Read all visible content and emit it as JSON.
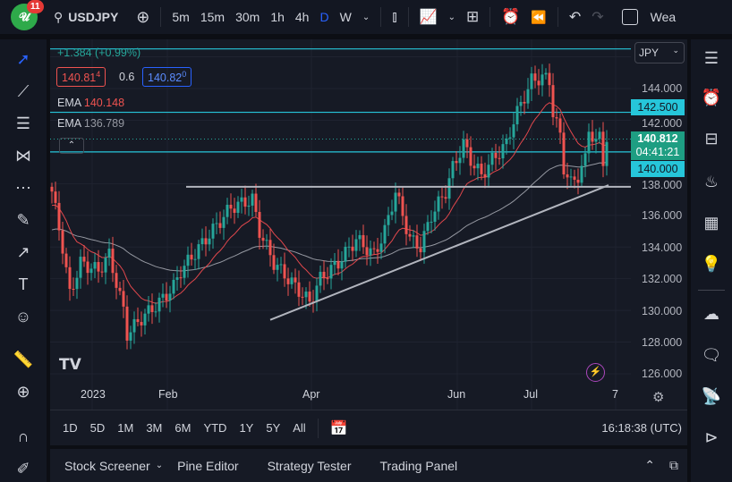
{
  "header": {
    "logo_badge": "11",
    "symbol": "USDJPY",
    "intervals": [
      "5m",
      "15m",
      "30m",
      "1h",
      "4h",
      "D",
      "W"
    ],
    "active_interval": "D",
    "weather_text": "Wea"
  },
  "legend": {
    "change": "+1.384 (+0.99%)",
    "sell_price": "140.81",
    "sell_sup": "4",
    "spread": "0.6",
    "buy_price": "140.82",
    "buy_sup": "0",
    "ema1_label": "EMA",
    "ema1_value": "140.148",
    "ema2_label": "EMA",
    "ema2_value": "136.789"
  },
  "price_axis": {
    "currency": "JPY",
    "ticks": [
      "144.000",
      "142.000",
      "138.000",
      "136.000",
      "134.000",
      "132.000",
      "130.000",
      "128.000",
      "126.000"
    ],
    "tags": {
      "alert_high": "142.500",
      "last_price": "140.812",
      "countdown": "04:41:21",
      "alert_low": "140.000"
    }
  },
  "time_axis": {
    "labels": [
      "2023",
      "Feb",
      "Apr",
      "Jun",
      "Jul",
      "7"
    ]
  },
  "range_bar": {
    "ranges": [
      "1D",
      "5D",
      "1M",
      "3M",
      "6M",
      "YTD",
      "1Y",
      "5Y",
      "All"
    ],
    "clock": "16:18:38 (UTC)"
  },
  "bottom_panel": {
    "tabs": [
      "Stock Screener",
      "Pine Editor",
      "Strategy Tester",
      "Trading Panel"
    ]
  },
  "colors": {
    "up": "#26a69a",
    "down": "#ef5350",
    "ema_fast": "#e0474c",
    "ema_slow": "#9598a1",
    "hline": "#26c6da",
    "accent": "#2962ff"
  },
  "chart_data": {
    "type": "candlestick",
    "symbol": "USDJPY",
    "timeframe": "D",
    "ylim": [
      125,
      147.5
    ],
    "close_path": [
      [
        0,
        137.5
      ],
      [
        3,
        134
      ],
      [
        5,
        131
      ],
      [
        8,
        133
      ],
      [
        13,
        132.5
      ],
      [
        16,
        133.5
      ],
      [
        20,
        130
      ],
      [
        21,
        128.5
      ],
      [
        25,
        129.5
      ],
      [
        30,
        130.5
      ],
      [
        34,
        131.5
      ],
      [
        36,
        132.5
      ],
      [
        43,
        134.5
      ],
      [
        50,
        136.5
      ],
      [
        56,
        137
      ],
      [
        58,
        135
      ],
      [
        62,
        133
      ],
      [
        68,
        131.5
      ],
      [
        72,
        130.5
      ],
      [
        75,
        132
      ],
      [
        80,
        133
      ],
      [
        85,
        134.5
      ],
      [
        90,
        133.5
      ],
      [
        93,
        135
      ],
      [
        96,
        137.5
      ],
      [
        100,
        134.5
      ],
      [
        103,
        134
      ],
      [
        106,
        136
      ],
      [
        110,
        137.5
      ],
      [
        112,
        139
      ],
      [
        115,
        140.5
      ],
      [
        117,
        139.5
      ],
      [
        120,
        138.5
      ],
      [
        123,
        139.5
      ],
      [
        127,
        140.5
      ],
      [
        129,
        142
      ],
      [
        132,
        143.5
      ],
      [
        134,
        144.5
      ],
      [
        137,
        144.7
      ],
      [
        139,
        144.5
      ],
      [
        140,
        142.5
      ],
      [
        142,
        141
      ],
      [
        143,
        139
      ],
      [
        145,
        138
      ],
      [
        147,
        138.5
      ],
      [
        149,
        139.5
      ],
      [
        150,
        141.5
      ],
      [
        152,
        140.5
      ],
      [
        153,
        141
      ],
      [
        154,
        139.5
      ],
      [
        155,
        140.8
      ]
    ],
    "ema_fast_seed": 136.5,
    "ema_fast_period": 50,
    "ema_slow_seed": 135,
    "ema_slow_period": 200,
    "horizontal_lines": [
      146.5,
      142.5,
      140.0
    ],
    "last_price": 140.812,
    "trendlines": [
      {
        "from": [
          37.5,
          137.8
        ],
        "to": [
          162,
          137.8
        ]
      },
      {
        "from": [
          61,
          129.4
        ],
        "to": [
          155.5,
          137.9
        ]
      }
    ]
  }
}
